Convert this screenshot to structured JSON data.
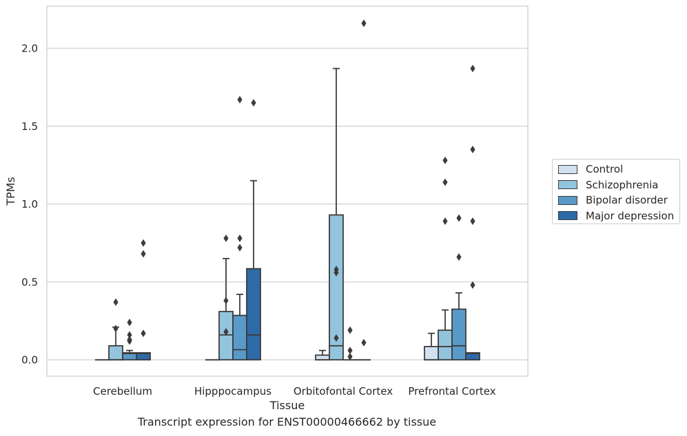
{
  "chart_data": {
    "type": "box",
    "title": "",
    "xlabel": "Tissue",
    "ylabel": "TPMs",
    "caption": "Transcript expression for ENST00000466662 by tissue",
    "categories": [
      "Cerebellum",
      "Hipppocampus",
      "Orbitofontal Cortex",
      "Prefrontal Cortex"
    ],
    "yticks": [
      "0.0",
      "0.5",
      "1.0",
      "1.5",
      "2.0"
    ],
    "ytick_values": [
      0,
      0.5,
      1.0,
      1.5,
      2.0
    ],
    "ylim": [
      -0.105,
      2.27
    ],
    "grid": "horizontal",
    "legend_position": "right",
    "series": [
      {
        "name": "Control",
        "color": "#d1e1f1",
        "boxes": [
          {
            "q1": 0,
            "median": 0,
            "q3": 0,
            "whisker_low": 0,
            "whisker_high": 0,
            "outliers": []
          },
          {
            "q1": 0,
            "median": 0,
            "q3": 0,
            "whisker_low": 0,
            "whisker_high": 0,
            "outliers": []
          },
          {
            "q1": 0,
            "median": 0,
            "q3": 0.03,
            "whisker_low": 0,
            "whisker_high": 0.06,
            "outliers": []
          },
          {
            "q1": 0,
            "median": 0,
            "q3": 0.085,
            "whisker_low": 0,
            "whisker_high": 0.17,
            "outliers": []
          }
        ]
      },
      {
        "name": "Schizophrenia",
        "color": "#93c4de",
        "boxes": [
          {
            "q1": 0,
            "median": 0,
            "q3": 0.09,
            "whisker_low": 0,
            "whisker_high": 0.21,
            "outliers": [
              0.37,
              0.2
            ]
          },
          {
            "q1": 0,
            "median": 0.16,
            "q3": 0.31,
            "whisker_low": 0,
            "whisker_high": 0.65,
            "outliers": [
              0.78,
              0.38,
              0.18
            ]
          },
          {
            "q1": 0,
            "median": 0.09,
            "q3": 0.93,
            "whisker_low": 0,
            "whisker_high": 1.87,
            "outliers": [
              0.58,
              0.56,
              0.14
            ]
          },
          {
            "q1": 0,
            "median": 0.085,
            "q3": 0.19,
            "whisker_low": 0,
            "whisker_high": 0.32,
            "outliers": [
              1.28,
              1.14,
              0.89
            ]
          }
        ]
      },
      {
        "name": "Bipolar disorder",
        "color": "#5a9ac8",
        "boxes": [
          {
            "q1": 0,
            "median": 0.04,
            "q3": 0.045,
            "whisker_low": 0,
            "whisker_high": 0.06,
            "outliers": [
              0.24,
              0.16,
              0.13,
              0.12
            ]
          },
          {
            "q1": 0,
            "median": 0.065,
            "q3": 0.285,
            "whisker_low": 0,
            "whisker_high": 0.42,
            "outliers": [
              1.67,
              0.78,
              0.72
            ]
          },
          {
            "q1": 0,
            "median": 0,
            "q3": 0,
            "whisker_low": 0,
            "whisker_high": 0,
            "outliers": [
              0.19,
              0.06,
              0.02
            ]
          },
          {
            "q1": 0,
            "median": 0.09,
            "q3": 0.325,
            "whisker_low": 0,
            "whisker_high": 0.43,
            "outliers": [
              0.91,
              0.66
            ]
          }
        ]
      },
      {
        "name": "Major depression",
        "color": "#2d6aa8",
        "boxes": [
          {
            "q1": 0,
            "median": 0.04,
            "q3": 0.045,
            "whisker_low": 0,
            "whisker_high": 0.045,
            "outliers": [
              0.75,
              0.68,
              0.17
            ]
          },
          {
            "q1": 0,
            "median": 0.16,
            "q3": 0.585,
            "whisker_low": 0,
            "whisker_high": 1.15,
            "outliers": [
              1.65
            ]
          },
          {
            "q1": 0,
            "median": 0,
            "q3": 0,
            "whisker_low": 0,
            "whisker_high": 0,
            "outliers": [
              2.16,
              0.11
            ]
          },
          {
            "q1": 0,
            "median": 0.04,
            "q3": 0.045,
            "whisker_low": 0,
            "whisker_high": 0.045,
            "outliers": [
              1.35,
              1.87,
              0.89,
              0.48
            ]
          }
        ]
      }
    ]
  }
}
